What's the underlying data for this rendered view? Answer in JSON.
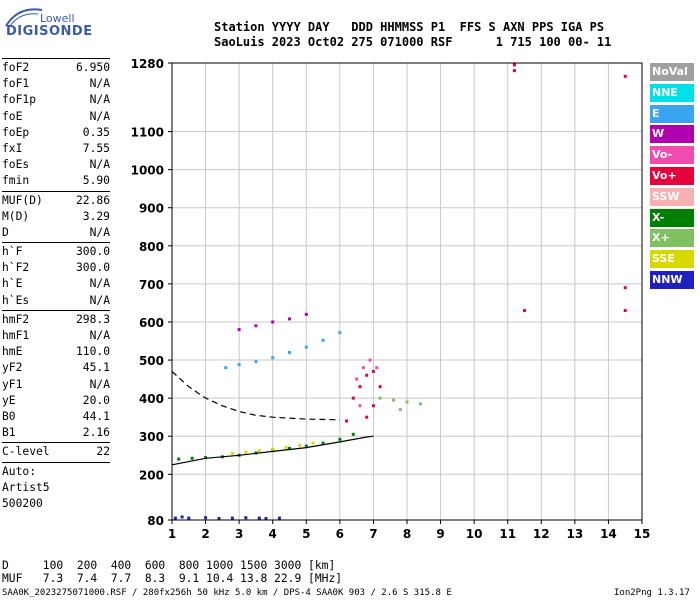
{
  "logo": {
    "top": "Lowell",
    "main": "DIGISONDE"
  },
  "header": {
    "labels": "Station YYYY DAY   DDD HHMMSS P1  FFS S AXN PPS IGA PS",
    "values": "SaoLuis 2023 Oct02 275 071000 RSF      1 715 100 00- 11"
  },
  "params": {
    "group1": [
      {
        "k": "foF2",
        "v": "6.950"
      },
      {
        "k": "foF1",
        "v": "N/A"
      },
      {
        "k": "foF1p",
        "v": "N/A"
      },
      {
        "k": "foE",
        "v": "N/A"
      },
      {
        "k": "foEp",
        "v": "0.35"
      },
      {
        "k": "fxI",
        "v": "7.55"
      },
      {
        "k": "foEs",
        "v": "N/A"
      },
      {
        "k": "fmin",
        "v": "5.90"
      }
    ],
    "group2": [
      {
        "k": "MUF(D)",
        "v": "22.86"
      },
      {
        "k": "M(D)",
        "v": "3.29"
      },
      {
        "k": "D",
        "v": "N/A"
      }
    ],
    "group3": [
      {
        "k": "h`F",
        "v": "300.0"
      },
      {
        "k": "h`F2",
        "v": "300.0"
      },
      {
        "k": "h`E",
        "v": "N/A"
      },
      {
        "k": "h`Es",
        "v": "N/A"
      }
    ],
    "group4": [
      {
        "k": "hmF2",
        "v": "298.3"
      },
      {
        "k": "hmF1",
        "v": "N/A"
      },
      {
        "k": "hmE",
        "v": "110.0"
      },
      {
        "k": "yF2",
        "v": "45.1"
      },
      {
        "k": "yF1",
        "v": "N/A"
      },
      {
        "k": "yE",
        "v": "20.0"
      },
      {
        "k": "B0",
        "v": "44.1"
      },
      {
        "k": "B1",
        "v": "2.16"
      }
    ],
    "group5": [
      {
        "k": "C-level",
        "v": "22"
      }
    ],
    "auto_lines": [
      "Auto:",
      "Artist5",
      "500200"
    ]
  },
  "legend": [
    {
      "label": "NoVal",
      "color": "#a0a0a0"
    },
    {
      "label": "NNE",
      "color": "#00e0e8"
    },
    {
      "label": "E",
      "color": "#3aa4f0"
    },
    {
      "label": "W",
      "color": "#b000b0"
    },
    {
      "label": "Vo-",
      "color": "#f04cb0"
    },
    {
      "label": "Vo+",
      "color": "#e8003c"
    },
    {
      "label": "SSW",
      "color": "#f8b0b0"
    },
    {
      "label": "X-",
      "color": "#008000"
    },
    {
      "label": "X+",
      "color": "#80c060"
    },
    {
      "label": "SSE",
      "color": "#d8d800"
    },
    {
      "label": "NNW",
      "color": "#2020c0"
    }
  ],
  "muf_table": {
    "d_row": "D     100  200  400  600  800 1000 1500 3000 [km]",
    "muf_row": "MUF   7.3  7.4  7.7  8.3  9.1 10.4 13.8 22.9 [MHz]"
  },
  "footer": "SAA0K_2023275071000.RSF / 280fx256h 50 kHz 5.0 km / DPS-4 SAA0K 903 / 2.6 S 315.8 E",
  "version": "Ion2Png 1.3.17",
  "chart_data": {
    "type": "scatter",
    "x_ticks": [
      1,
      2,
      3,
      4,
      5,
      6,
      7,
      8,
      9,
      10,
      11,
      12,
      13,
      14,
      15
    ],
    "y_ticks": [
      80,
      200,
      300,
      400,
      500,
      600,
      700,
      800,
      900,
      1000,
      1100,
      1280
    ],
    "xlim": [
      1,
      15
    ],
    "ylim": [
      80,
      1280
    ],
    "grid": true,
    "legend_position": "right",
    "series": [
      {
        "color": "#2020c0",
        "points": [
          [
            1.1,
            85
          ],
          [
            1.5,
            85
          ],
          [
            2.0,
            86
          ],
          [
            2.4,
            84
          ],
          [
            2.8,
            85
          ],
          [
            3.2,
            86
          ],
          [
            3.6,
            85
          ],
          [
            3.8,
            84
          ],
          [
            4.2,
            85
          ],
          [
            1.3,
            88
          ]
        ]
      },
      {
        "color": "#008000",
        "points": [
          [
            1.2,
            240
          ],
          [
            1.6,
            242
          ],
          [
            2.0,
            244
          ],
          [
            2.5,
            246
          ],
          [
            3.0,
            250
          ],
          [
            3.5,
            256
          ],
          [
            4.0,
            262
          ],
          [
            4.5,
            268
          ],
          [
            5.0,
            274
          ],
          [
            5.5,
            282
          ],
          [
            6.0,
            292
          ],
          [
            6.4,
            305
          ]
        ]
      },
      {
        "color": "#d8d800",
        "points": [
          [
            2.8,
            255
          ],
          [
            3.2,
            258
          ],
          [
            3.6,
            262
          ],
          [
            4.0,
            266
          ],
          [
            4.4,
            270
          ],
          [
            4.8,
            276
          ],
          [
            5.2,
            282
          ]
        ]
      },
      {
        "color": "#3aa4f0",
        "points": [
          [
            2.6,
            480
          ],
          [
            3.0,
            488
          ],
          [
            3.5,
            496
          ],
          [
            4.0,
            506
          ],
          [
            4.5,
            520
          ],
          [
            5.0,
            534
          ],
          [
            5.5,
            552
          ],
          [
            6.0,
            572
          ]
        ]
      },
      {
        "color": "#e8003c",
        "points": [
          [
            6.4,
            400
          ],
          [
            6.6,
            430
          ],
          [
            6.8,
            460
          ],
          [
            7.0,
            470
          ],
          [
            7.2,
            430
          ],
          [
            7.0,
            380
          ],
          [
            6.8,
            350
          ],
          [
            6.2,
            340
          ]
        ]
      },
      {
        "color": "#f04cb0",
        "points": [
          [
            6.5,
            450
          ],
          [
            6.7,
            480
          ],
          [
            6.9,
            500
          ],
          [
            7.1,
            480
          ],
          [
            6.6,
            380
          ]
        ]
      },
      {
        "color": "#80c060",
        "points": [
          [
            7.2,
            400
          ],
          [
            7.6,
            395
          ],
          [
            8.0,
            390
          ],
          [
            8.4,
            385
          ],
          [
            7.8,
            370
          ]
        ]
      },
      {
        "color": "#b000b0",
        "points": [
          [
            3.0,
            580
          ],
          [
            3.5,
            590
          ],
          [
            4.0,
            600
          ],
          [
            4.5,
            608
          ],
          [
            5.0,
            620
          ]
        ]
      },
      {
        "color": "#e8003c",
        "points": [
          [
            11.2,
            1275
          ],
          [
            11.2,
            1260
          ],
          [
            14.5,
            1245
          ],
          [
            14.5,
            690
          ],
          [
            14.5,
            630
          ],
          [
            11.5,
            630
          ]
        ]
      }
    ],
    "traces": [
      {
        "style": "solid",
        "points": [
          [
            1.0,
            225
          ],
          [
            2.0,
            242
          ],
          [
            3.0,
            250
          ],
          [
            4.0,
            260
          ],
          [
            5.0,
            270
          ],
          [
            6.0,
            285
          ],
          [
            6.8,
            298
          ],
          [
            7.0,
            300
          ]
        ]
      },
      {
        "style": "dashed",
        "points": [
          [
            1.0,
            470
          ],
          [
            1.5,
            430
          ],
          [
            2.0,
            400
          ],
          [
            2.5,
            380
          ],
          [
            3.0,
            365
          ],
          [
            3.5,
            355
          ],
          [
            4.0,
            350
          ],
          [
            5.0,
            345
          ],
          [
            6.0,
            343
          ]
        ]
      }
    ]
  }
}
